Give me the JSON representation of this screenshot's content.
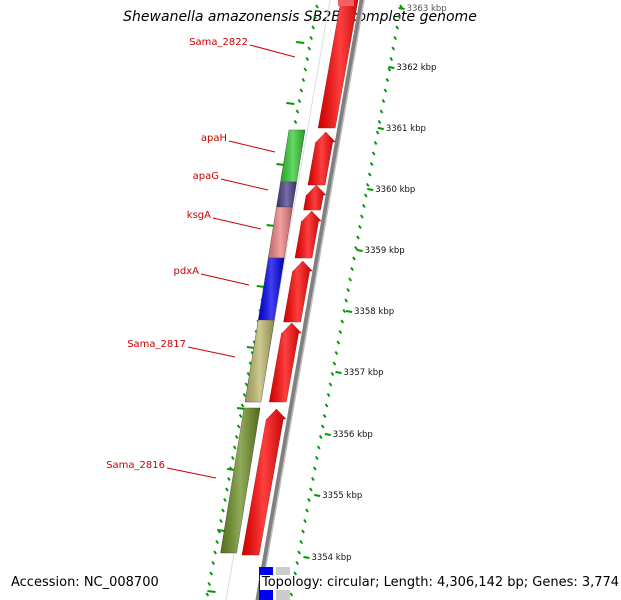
{
  "title": "Shewanella amazonensis SB2B, complete genome",
  "footer": {
    "accession": "Accession: NC_008700",
    "topology": "Topology: circular; Length: 4,306,142 bp; Genes: 3,774"
  },
  "genes": [
    {
      "id": "Sama_2822",
      "label": "Sama_2822",
      "color": "#ff0000",
      "forward": false
    },
    {
      "id": "apaH",
      "label": "apaH",
      "color": "#33cc33",
      "forward": false
    },
    {
      "id": "apaG",
      "label": "apaG",
      "color": "#4b3f8a",
      "forward": false
    },
    {
      "id": "ksgA",
      "label": "ksgA",
      "color": "#f08080",
      "forward": false
    },
    {
      "id": "pdxA",
      "label": "pdxA",
      "color": "#0000ee",
      "forward": false
    },
    {
      "id": "Sama_2817",
      "label": "Sama_2817",
      "color": "#bdb76b",
      "forward": false
    },
    {
      "id": "Sama_2816",
      "label": "Sama_2816",
      "color": "#6b8e23",
      "forward": false
    }
  ],
  "scale_labels": [
    "3363 kbp",
    "3362 kbp",
    "3361 kbp",
    "3360 kbp",
    "3359 kbp",
    "3358 kbp",
    "3357 kbp",
    "3356 kbp",
    "3355 kbp",
    "3354 kbp"
  ],
  "colors": {
    "label_red": "#cc0000",
    "backbone": "#808080",
    "tick_green": "#009900",
    "cds_red": "#ff0000"
  }
}
